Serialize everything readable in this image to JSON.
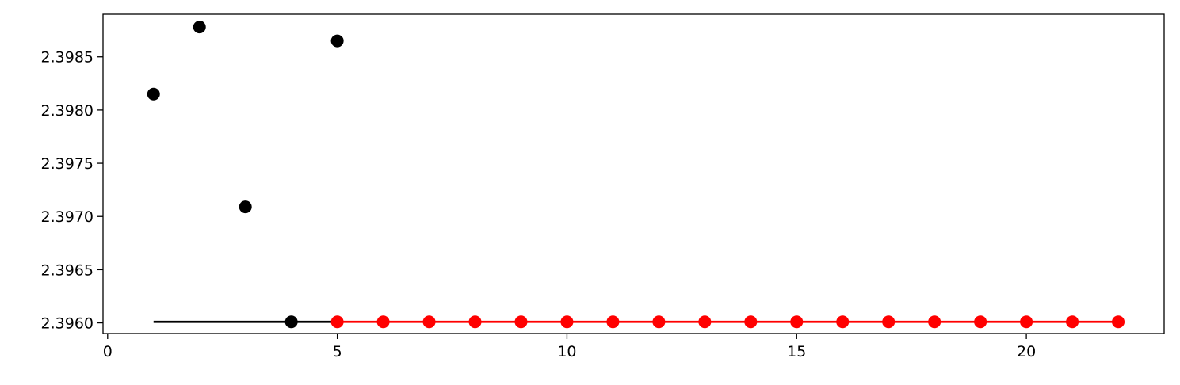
{
  "chart_data": {
    "type": "scatter",
    "title": "",
    "xlabel": "",
    "ylabel": "",
    "xlim": [
      -0.1,
      23.0
    ],
    "ylim": [
      2.3959,
      2.3989
    ],
    "x_ticks": [
      0,
      5,
      10,
      15,
      20
    ],
    "y_ticks": [
      2.396,
      2.3965,
      2.397,
      2.3975,
      2.398,
      2.3985
    ],
    "x_tick_labels": [
      "0",
      "5",
      "10",
      "15",
      "20"
    ],
    "y_tick_labels": [
      "2.3960",
      "2.3965",
      "2.3970",
      "2.3975",
      "2.3980",
      "2.3985"
    ],
    "grid": false,
    "legend": "none",
    "series": [
      {
        "kind": "points",
        "color": "#000000",
        "x": [
          1,
          2,
          3,
          4,
          5
        ],
        "y": [
          2.39815,
          2.39878,
          2.39709,
          2.39601,
          2.39865
        ]
      },
      {
        "kind": "line",
        "color": "#000000",
        "x": [
          1,
          5
        ],
        "y": [
          2.39601,
          2.39601
        ]
      },
      {
        "kind": "line-points",
        "color": "#ff0000",
        "x": [
          5,
          6,
          7,
          8,
          9,
          10,
          11,
          12,
          13,
          14,
          15,
          16,
          17,
          18,
          19,
          20,
          21,
          22
        ],
        "y": [
          2.39601,
          2.39601,
          2.39601,
          2.39601,
          2.39601,
          2.39601,
          2.39601,
          2.39601,
          2.39601,
          2.39601,
          2.39601,
          2.39601,
          2.39601,
          2.39601,
          2.39601,
          2.39601,
          2.39601,
          2.39601
        ]
      }
    ]
  }
}
